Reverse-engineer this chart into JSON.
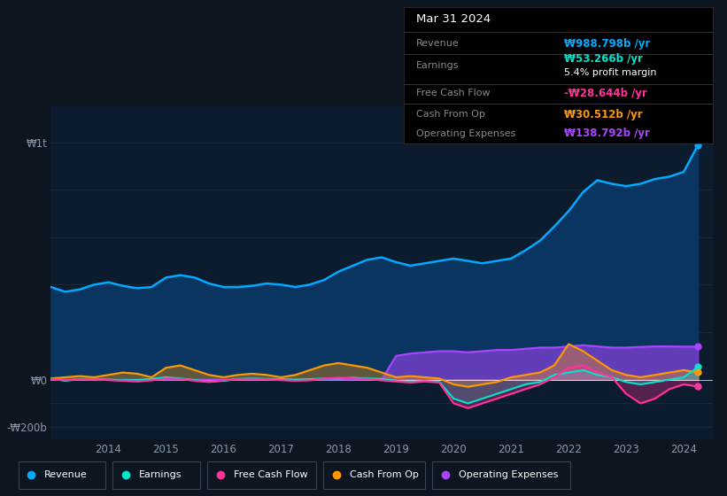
{
  "bg_color": "#0d1520",
  "plot_bg_color": "#0d1b2e",
  "grid_color": "#1a2a40",
  "years": [
    2013.0,
    2013.25,
    2013.5,
    2013.75,
    2014.0,
    2014.25,
    2014.5,
    2014.75,
    2015.0,
    2015.25,
    2015.5,
    2015.75,
    2016.0,
    2016.25,
    2016.5,
    2016.75,
    2017.0,
    2017.25,
    2017.5,
    2017.75,
    2018.0,
    2018.25,
    2018.5,
    2018.75,
    2019.0,
    2019.25,
    2019.5,
    2019.75,
    2020.0,
    2020.25,
    2020.5,
    2020.75,
    2021.0,
    2021.25,
    2021.5,
    2021.75,
    2022.0,
    2022.25,
    2022.5,
    2022.75,
    2023.0,
    2023.25,
    2023.5,
    2023.75,
    2024.0,
    2024.25
  ],
  "revenue": [
    390,
    370,
    380,
    400,
    410,
    395,
    385,
    390,
    430,
    440,
    430,
    405,
    390,
    390,
    395,
    405,
    400,
    390,
    400,
    420,
    455,
    480,
    505,
    515,
    495,
    480,
    490,
    500,
    510,
    500,
    490,
    500,
    510,
    545,
    585,
    645,
    710,
    790,
    840,
    825,
    815,
    825,
    845,
    855,
    875,
    989
  ],
  "earnings": [
    5,
    -5,
    3,
    2,
    0,
    -3,
    -2,
    3,
    10,
    5,
    -2,
    -8,
    -5,
    3,
    5,
    3,
    2,
    0,
    2,
    5,
    5,
    8,
    5,
    3,
    -5,
    -10,
    -5,
    -10,
    -80,
    -100,
    -80,
    -60,
    -40,
    -20,
    -10,
    20,
    30,
    40,
    20,
    10,
    -10,
    -20,
    -10,
    0,
    10,
    53
  ],
  "fcf": [
    2,
    -3,
    2,
    1,
    -2,
    -5,
    -8,
    -3,
    5,
    3,
    -5,
    -10,
    -3,
    2,
    3,
    2,
    -2,
    -5,
    -3,
    5,
    8,
    5,
    3,
    -3,
    -8,
    -12,
    -8,
    -12,
    -100,
    -120,
    -100,
    -80,
    -60,
    -40,
    -20,
    10,
    50,
    60,
    30,
    10,
    -60,
    -100,
    -80,
    -40,
    -20,
    -29
  ],
  "cash_from_op": [
    5,
    10,
    15,
    10,
    20,
    30,
    25,
    10,
    50,
    60,
    40,
    20,
    10,
    20,
    25,
    20,
    10,
    20,
    40,
    60,
    70,
    60,
    50,
    30,
    10,
    15,
    10,
    5,
    -20,
    -30,
    -20,
    -10,
    10,
    20,
    30,
    60,
    150,
    120,
    80,
    40,
    20,
    10,
    20,
    30,
    40,
    31
  ],
  "opex": [
    0,
    0,
    0,
    0,
    0,
    0,
    0,
    0,
    0,
    0,
    0,
    0,
    0,
    0,
    0,
    0,
    0,
    0,
    0,
    0,
    0,
    0,
    0,
    0,
    100,
    110,
    115,
    120,
    120,
    115,
    120,
    125,
    125,
    130,
    135,
    135,
    140,
    145,
    140,
    135,
    135,
    138,
    140,
    140,
    139,
    139
  ],
  "revenue_color": "#00aaff",
  "earnings_color": "#00e5cc",
  "fcf_color": "#ff3399",
  "cash_op_color": "#ff9900",
  "opex_color": "#aa44ff",
  "revenue_fill": "#0a3560",
  "info_box": {
    "date": "Mar 31 2024",
    "revenue_label": "Revenue",
    "revenue_val": "₩988.798b /yr",
    "earnings_label": "Earnings",
    "earnings_val": "₩53.266b /yr",
    "profit_margin": "5.4% profit margin",
    "fcf_label": "Free Cash Flow",
    "fcf_val": "-₩28.644b /yr",
    "cash_op_label": "Cash From Op",
    "cash_op_val": "₩30.512b /yr",
    "opex_label": "Operating Expenses",
    "opex_val": "₩138.792b /yr"
  },
  "yticks": [
    -200,
    0,
    1000
  ],
  "ylabels": [
    "-₩200b",
    "₩0",
    "₩1t"
  ],
  "xtick_positions": [
    2014,
    2015,
    2016,
    2017,
    2018,
    2019,
    2020,
    2021,
    2022,
    2023,
    2024
  ],
  "xlim": [
    2013.0,
    2024.5
  ],
  "ylim": [
    -250,
    1150
  ],
  "legend_items": [
    {
      "label": "Revenue",
      "color": "#00aaff"
    },
    {
      "label": "Earnings",
      "color": "#00e5cc"
    },
    {
      "label": "Free Cash Flow",
      "color": "#ff3399"
    },
    {
      "label": "Cash From Op",
      "color": "#ff9900"
    },
    {
      "label": "Operating Expenses",
      "color": "#aa44ff"
    }
  ]
}
